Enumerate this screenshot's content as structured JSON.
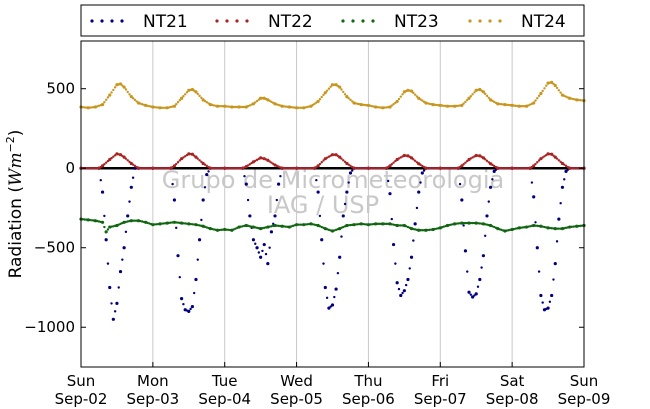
{
  "chart_data": {
    "type": "scatter",
    "ylabel_text": "Radiation (",
    "ylabel_unit": "Wm",
    "ylabel_exp": "−2",
    "ylabel_close": ")",
    "ylim": [
      -1250,
      800
    ],
    "yticks": [
      500,
      0,
      -500,
      -1000
    ],
    "ytick_labels": [
      "500",
      "0",
      "−500",
      "−1000"
    ],
    "xlim": [
      0,
      7
    ],
    "xticks": [
      0,
      1,
      2,
      3,
      4,
      5,
      6,
      7
    ],
    "xtick_labels": [
      [
        "Sun",
        "Sep-02"
      ],
      [
        "Mon",
        "Sep-03"
      ],
      [
        "Tue",
        "Sep-04"
      ],
      [
        "Wed",
        "Sep-05"
      ],
      [
        "Thu",
        "Sep-06"
      ],
      [
        "Fri",
        "Sep-07"
      ],
      [
        "Sat",
        "Sep-08"
      ],
      [
        "Sun",
        "Sep-09"
      ]
    ],
    "grid": "vertical",
    "zero_line": true,
    "legend_position": "top, outside plot, single row",
    "watermark": [
      "Grupo de Micrometeorologia",
      "IAG / USP"
    ],
    "series": [
      {
        "name": "NT21",
        "color": "#000080",
        "x": [
          0.0,
          0.25,
          0.3,
          0.35,
          0.4,
          0.45,
          0.5,
          0.55,
          0.6,
          0.65,
          0.7,
          0.75,
          0.8,
          1.0,
          1.25,
          1.3,
          1.35,
          1.4,
          1.45,
          1.5,
          1.55,
          1.6,
          1.65,
          1.7,
          1.75,
          1.8,
          2.0,
          2.25,
          2.3,
          2.35,
          2.4,
          2.45,
          2.5,
          2.55,
          2.6,
          2.65,
          2.7,
          2.75,
          2.8,
          3.0,
          3.25,
          3.3,
          3.35,
          3.4,
          3.45,
          3.5,
          3.55,
          3.6,
          3.65,
          3.7,
          3.75,
          3.8,
          4.0,
          4.25,
          4.3,
          4.35,
          4.4,
          4.45,
          4.5,
          4.55,
          4.6,
          4.65,
          4.7,
          4.75,
          4.8,
          5.0,
          5.25,
          5.3,
          5.35,
          5.4,
          5.45,
          5.5,
          5.55,
          5.6,
          5.65,
          5.7,
          5.75,
          5.8,
          6.0,
          6.25,
          6.3,
          6.35,
          6.4,
          6.45,
          6.5,
          6.55,
          6.6,
          6.65,
          6.7,
          6.75,
          6.8,
          7.0
        ],
        "y": [
          0,
          0,
          -150,
          -450,
          -750,
          -950,
          -850,
          -650,
          -500,
          -300,
          -120,
          0,
          0,
          0,
          0,
          -200,
          -550,
          -820,
          -890,
          -900,
          -870,
          -700,
          -450,
          -200,
          -40,
          0,
          0,
          0,
          -100,
          -300,
          -450,
          -500,
          -560,
          -480,
          -600,
          -400,
          -300,
          -100,
          0,
          0,
          0,
          -150,
          -450,
          -750,
          -880,
          -860,
          -760,
          -560,
          -300,
          -150,
          -30,
          0,
          0,
          0,
          -160,
          -480,
          -720,
          -800,
          -770,
          -700,
          -560,
          -350,
          -150,
          -30,
          0,
          0,
          0,
          -200,
          -520,
          -780,
          -810,
          -790,
          -700,
          -550,
          -300,
          -120,
          -20,
          0,
          0,
          0,
          -180,
          -500,
          -800,
          -890,
          -880,
          -800,
          -600,
          -320,
          -120,
          -20,
          0,
          0
        ]
      },
      {
        "name": "NT22",
        "color": "#aa2222",
        "x": [
          0.0,
          0.25,
          0.3,
          0.4,
          0.5,
          0.55,
          0.6,
          0.7,
          0.8,
          1.0,
          1.25,
          1.3,
          1.4,
          1.5,
          1.55,
          1.6,
          1.7,
          1.8,
          2.0,
          2.25,
          2.3,
          2.4,
          2.5,
          2.55,
          2.6,
          2.7,
          2.8,
          3.0,
          3.25,
          3.3,
          3.4,
          3.5,
          3.55,
          3.6,
          3.7,
          3.8,
          4.0,
          4.25,
          4.3,
          4.4,
          4.5,
          4.55,
          4.6,
          4.7,
          4.8,
          5.0,
          5.25,
          5.3,
          5.4,
          5.5,
          5.55,
          5.6,
          5.7,
          5.8,
          6.0,
          6.25,
          6.3,
          6.4,
          6.5,
          6.55,
          6.6,
          6.7,
          6.8,
          7.0
        ],
        "y": [
          0,
          0,
          15,
          55,
          90,
          85,
          70,
          30,
          0,
          0,
          0,
          15,
          60,
          90,
          88,
          70,
          30,
          0,
          0,
          0,
          10,
          40,
          65,
          60,
          50,
          20,
          0,
          0,
          0,
          15,
          60,
          85,
          85,
          70,
          30,
          0,
          0,
          0,
          15,
          55,
          80,
          78,
          65,
          28,
          0,
          0,
          0,
          15,
          55,
          80,
          78,
          65,
          28,
          0,
          0,
          0,
          15,
          60,
          90,
          88,
          70,
          30,
          0,
          0
        ]
      },
      {
        "name": "NT23",
        "color": "#116611",
        "x": [
          0.0,
          0.1,
          0.2,
          0.3,
          0.35,
          0.4,
          0.5,
          0.6,
          0.7,
          0.8,
          0.9,
          1.0,
          1.1,
          1.2,
          1.3,
          1.4,
          1.5,
          1.6,
          1.7,
          1.8,
          1.9,
          2.0,
          2.1,
          2.2,
          2.3,
          2.4,
          2.5,
          2.6,
          2.7,
          2.8,
          2.9,
          3.0,
          3.1,
          3.2,
          3.3,
          3.4,
          3.5,
          3.6,
          3.7,
          3.8,
          3.9,
          4.0,
          4.1,
          4.2,
          4.3,
          4.4,
          4.5,
          4.6,
          4.7,
          4.8,
          4.9,
          5.0,
          5.1,
          5.2,
          5.3,
          5.4,
          5.5,
          5.6,
          5.7,
          5.8,
          5.9,
          6.0,
          6.1,
          6.2,
          6.3,
          6.4,
          6.5,
          6.6,
          6.7,
          6.8,
          6.9,
          7.0
        ],
        "y": [
          -320,
          -325,
          -330,
          -340,
          -400,
          -370,
          -360,
          -340,
          -330,
          -330,
          -340,
          -355,
          -350,
          -345,
          -340,
          -345,
          -350,
          -355,
          -365,
          -380,
          -390,
          -385,
          -390,
          -370,
          -360,
          -370,
          -380,
          -370,
          -360,
          -365,
          -370,
          -355,
          -355,
          -350,
          -360,
          -380,
          -395,
          -380,
          -360,
          -355,
          -350,
          -355,
          -350,
          -350,
          -350,
          -360,
          -360,
          -380,
          -390,
          -390,
          -385,
          -375,
          -360,
          -350,
          -345,
          -345,
          -345,
          -350,
          -360,
          -380,
          -395,
          -385,
          -375,
          -370,
          -360,
          -365,
          -375,
          -380,
          -380,
          -370,
          -365,
          -360
        ]
      },
      {
        "name": "NT24",
        "color": "#c8961e",
        "x": [
          0.0,
          0.1,
          0.2,
          0.3,
          0.4,
          0.5,
          0.55,
          0.6,
          0.7,
          0.8,
          0.9,
          1.0,
          1.1,
          1.2,
          1.3,
          1.4,
          1.5,
          1.55,
          1.6,
          1.7,
          1.8,
          1.9,
          2.0,
          2.1,
          2.2,
          2.3,
          2.4,
          2.5,
          2.55,
          2.6,
          2.7,
          2.8,
          2.9,
          3.0,
          3.1,
          3.2,
          3.3,
          3.4,
          3.5,
          3.55,
          3.6,
          3.7,
          3.8,
          3.9,
          4.0,
          4.1,
          4.2,
          4.3,
          4.4,
          4.5,
          4.55,
          4.6,
          4.7,
          4.8,
          4.9,
          5.0,
          5.1,
          5.2,
          5.3,
          5.4,
          5.5,
          5.55,
          5.6,
          5.7,
          5.8,
          5.9,
          6.0,
          6.1,
          6.2,
          6.3,
          6.4,
          6.5,
          6.55,
          6.6,
          6.7,
          6.8,
          6.9,
          7.0
        ],
        "y": [
          385,
          380,
          385,
          400,
          460,
          525,
          530,
          510,
          450,
          410,
          395,
          385,
          380,
          380,
          390,
          440,
          490,
          495,
          480,
          430,
          400,
          390,
          390,
          385,
          385,
          385,
          405,
          440,
          440,
          430,
          405,
          390,
          385,
          380,
          380,
          390,
          420,
          475,
          525,
          525,
          510,
          450,
          410,
          400,
          395,
          385,
          380,
          385,
          420,
          480,
          490,
          485,
          440,
          410,
          400,
          395,
          390,
          390,
          395,
          440,
          490,
          495,
          480,
          430,
          405,
          400,
          395,
          390,
          390,
          410,
          470,
          535,
          540,
          520,
          460,
          440,
          430,
          425
        ]
      }
    ]
  }
}
